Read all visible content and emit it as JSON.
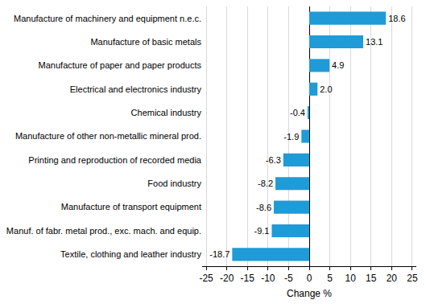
{
  "chart_data": {
    "type": "bar",
    "orientation": "horizontal",
    "categories": [
      "Manufacture of machinery and equipment n.e.c.",
      "Manufacture of basic metals",
      "Manufacture of paper and paper products",
      "Electrical and electronics industry",
      "Chemical industry",
      "Manufacture of other non-metallic mineral prod.",
      "Printing and reproduction of recorded media",
      "Food industry",
      "Manufacture of transport equipment",
      "Manuf. of fabr. metal prod., exc. mach. and equip.",
      "Textile, clothing and leather industry"
    ],
    "values": [
      18.6,
      13.1,
      4.9,
      2.0,
      -0.4,
      -1.9,
      -6.3,
      -8.2,
      -8.6,
      -9.1,
      -18.7
    ],
    "value_labels": [
      "18.6",
      "13.1",
      "4.9",
      "2.0",
      "-0.4",
      "-1.9",
      "-6.3",
      "-8.2",
      "-8.6",
      "-9.1",
      "-18.7"
    ],
    "color": "#1f9bd7",
    "x_label": "Change %",
    "xlim": [
      -26,
      26
    ],
    "xticks": [
      -25,
      -20,
      -15,
      -10,
      -5,
      0,
      5,
      10,
      15,
      20,
      25
    ],
    "grid": true,
    "data_labels": true
  }
}
